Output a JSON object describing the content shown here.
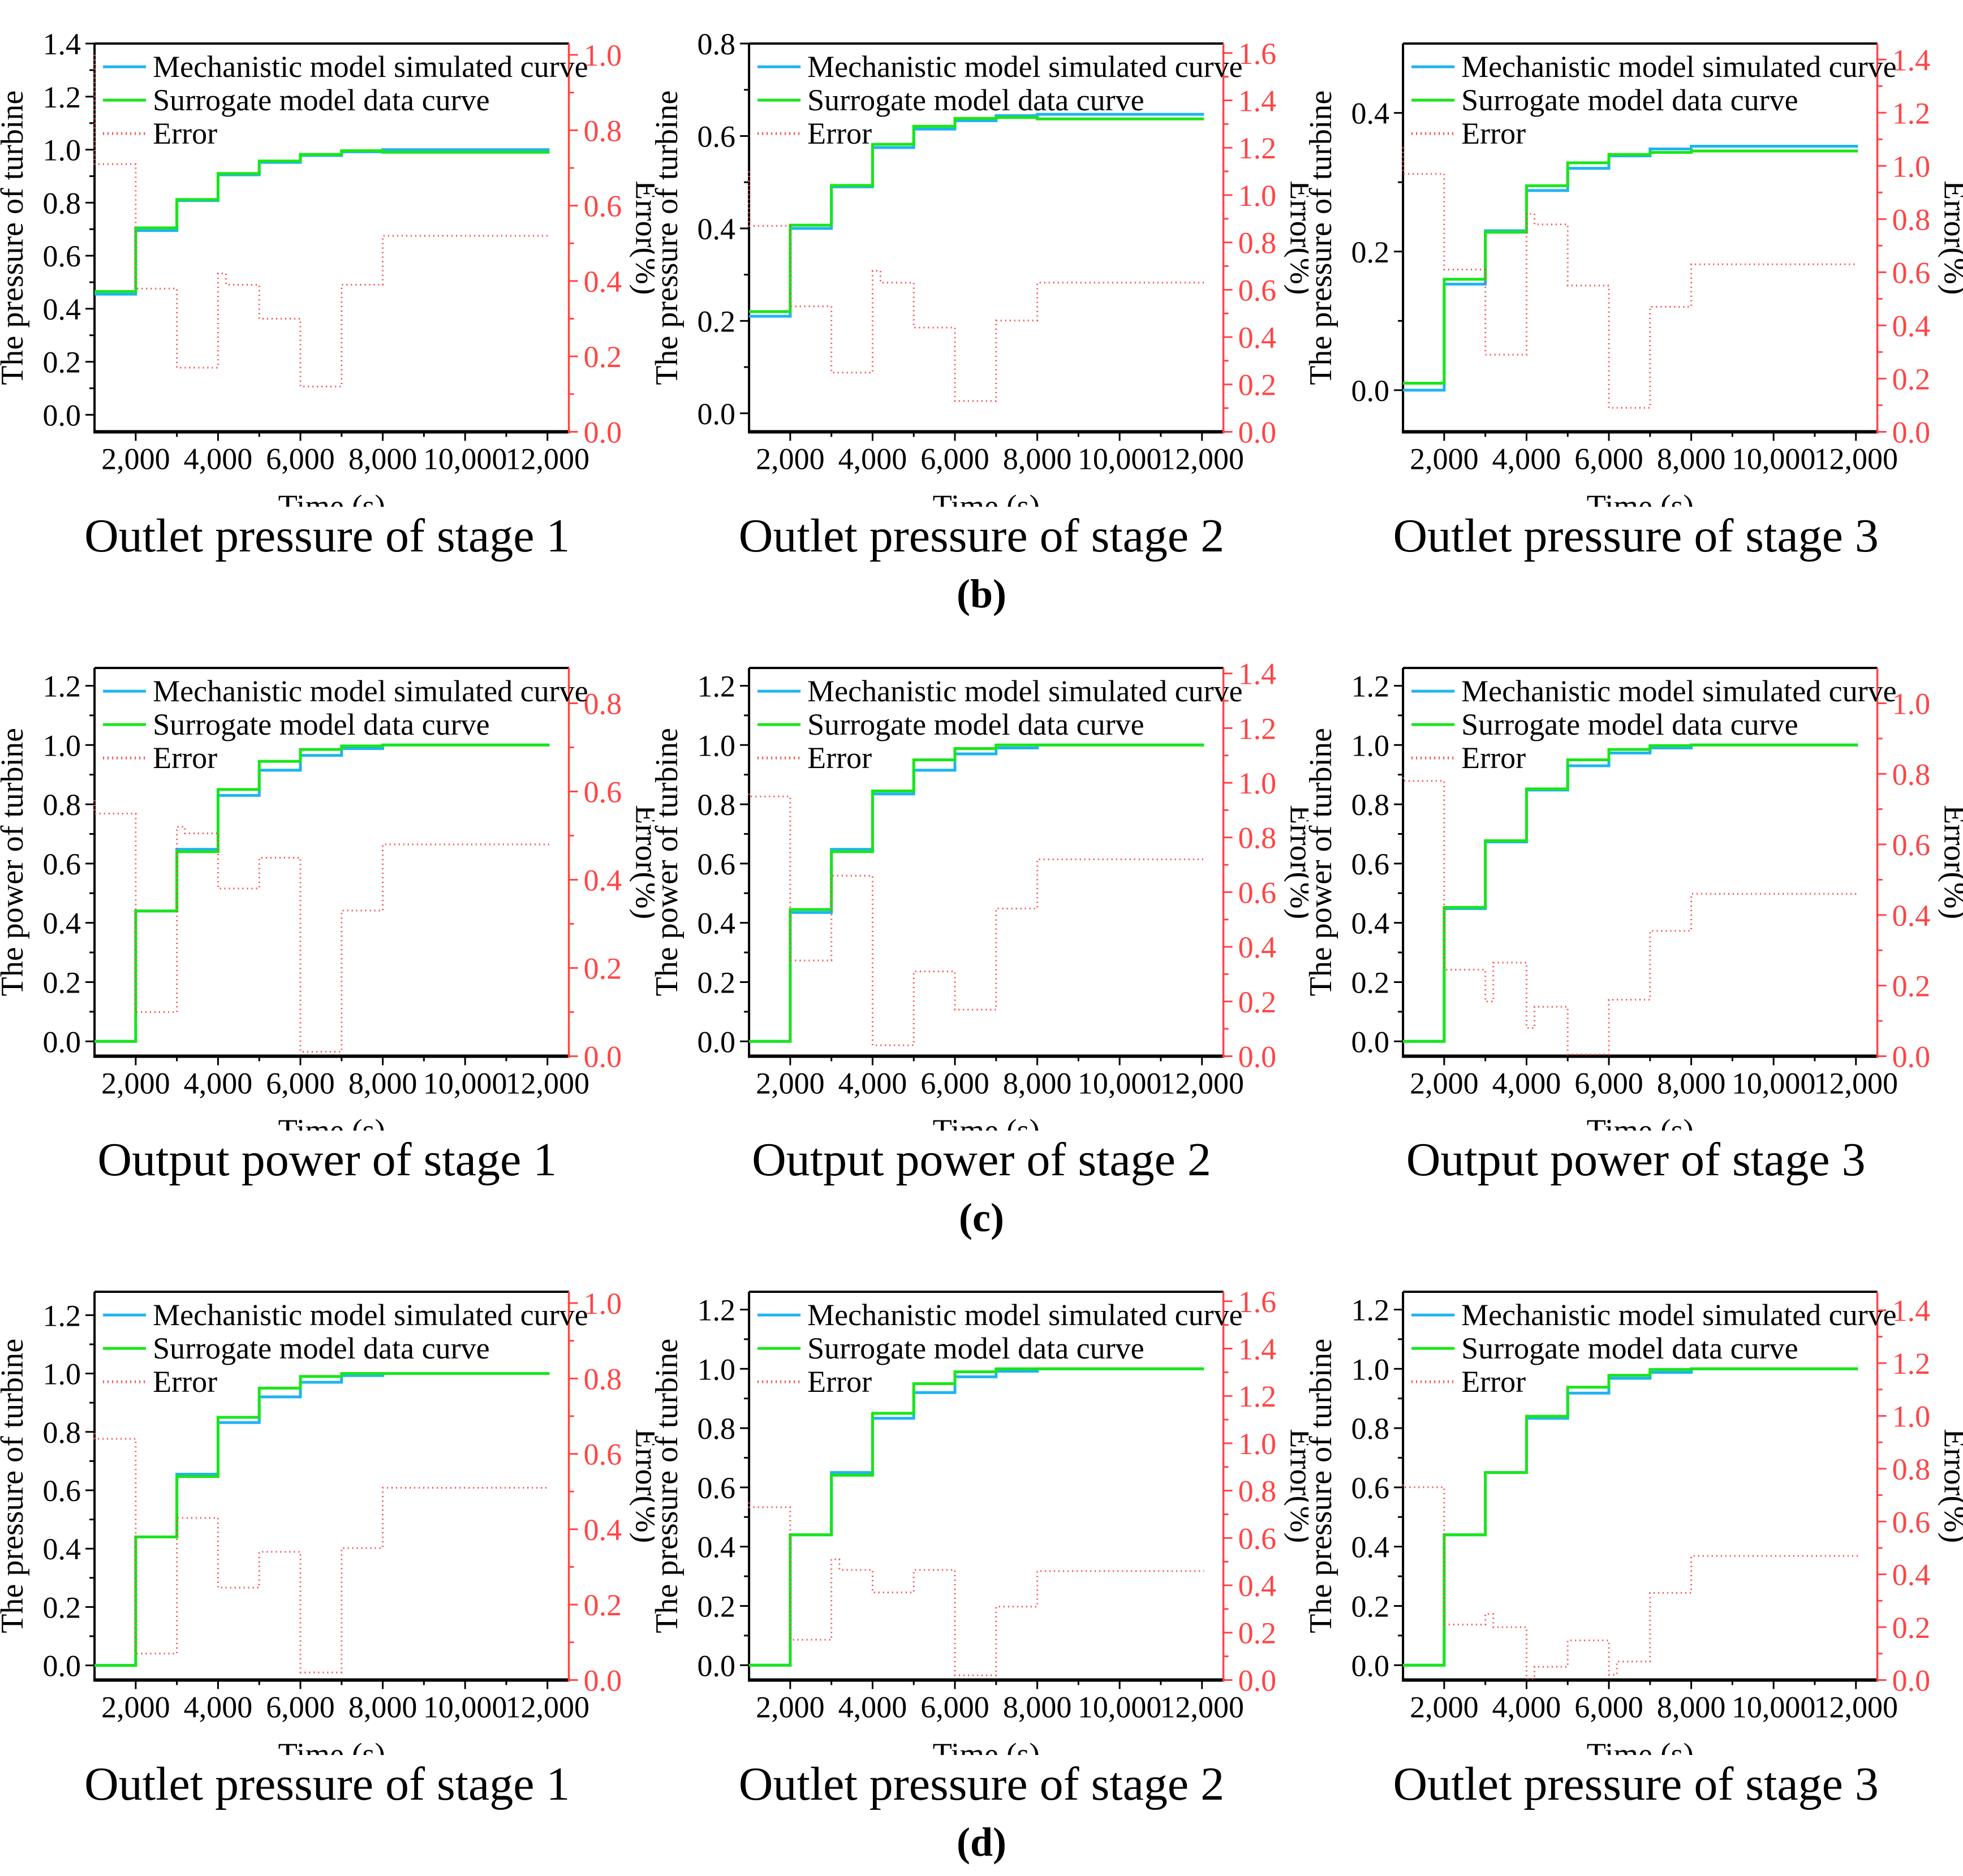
{
  "figure": {
    "row_labels": [
      "(b)",
      "(c)",
      "(d)"
    ],
    "legend": [
      "Mechanistic model simulated curve",
      "Surrogate model data curve",
      "Error"
    ],
    "colors": {
      "mechanistic": "#1fb4f0",
      "surrogate": "#19e619",
      "error": "#ff4545",
      "axis": "#000000"
    },
    "x": {
      "label": "Time (s)",
      "min": 1000,
      "max": 12520,
      "ticks": [
        2000,
        4000,
        6000,
        8000,
        10000,
        12000
      ],
      "ticklabels": [
        "2,000",
        "4,000",
        "6,000",
        "8,000",
        "10,000",
        "12,000"
      ],
      "minor_ticks": [
        3000,
        5000,
        7000,
        9000,
        11000
      ]
    },
    "step_boundaries": [
      1000,
      2000,
      3000,
      4000,
      5000,
      6000,
      7000,
      8000
    ],
    "x_end": 12050
  },
  "chart_data": [
    {
      "type": "line-step",
      "caption": "Outlet pressure of stage 1",
      "left_axis": {
        "label": "The pressure of turbine",
        "min": -0.064,
        "max": 1.4,
        "ticks": [
          0.0,
          0.2,
          0.4,
          0.6,
          0.8,
          1.0,
          1.2,
          1.4
        ],
        "labels": [
          "0.0",
          "0.2",
          "0.4",
          "0.6",
          "0.8",
          "1.0",
          "1.2",
          "1.4"
        ]
      },
      "right_axis": {
        "label": "Error(%)",
        "min": 0,
        "max": 1.03,
        "ticks": [
          0.0,
          0.2,
          0.4,
          0.6,
          0.8,
          1.0
        ],
        "labels": [
          "0.0",
          "0.2",
          "0.4",
          "0.6",
          "0.8",
          "1.0"
        ]
      },
      "series": {
        "mechanistic": [
          0.455,
          0.695,
          0.808,
          0.905,
          0.952,
          0.978,
          0.992,
          1.0
        ],
        "surrogate": [
          0.465,
          0.705,
          0.812,
          0.91,
          0.957,
          0.982,
          0.996,
          0.99
        ],
        "error": {
          "start": 1.0,
          "steps": [
            0.71,
            0.38,
            0.17,
            [
              0.42,
              0.39
            ],
            0.3,
            0.12,
            0.39,
            0.52
          ]
        }
      }
    },
    {
      "type": "line-step",
      "caption": "Outlet pressure of stage 2",
      "left_axis": {
        "label": "The pressure of turbine",
        "min": -0.04,
        "max": 0.8,
        "ticks": [
          0.0,
          0.2,
          0.4,
          0.6,
          0.8
        ],
        "labels": [
          "0.0",
          "0.2",
          "0.4",
          "0.6",
          "0.8"
        ]
      },
      "right_axis": {
        "label": "Error(%)",
        "min": 0,
        "max": 1.64,
        "ticks": [
          0.0,
          0.2,
          0.4,
          0.6,
          0.8,
          1.0,
          1.2,
          1.4,
          1.6
        ],
        "labels": [
          "0.0",
          "0.2",
          "0.4",
          "0.6",
          "0.8",
          "1.0",
          "1.2",
          "1.4",
          "1.6"
        ]
      },
      "series": {
        "mechanistic": [
          0.21,
          0.4,
          0.49,
          0.575,
          0.615,
          0.633,
          0.644,
          0.647
        ],
        "surrogate": [
          0.22,
          0.407,
          0.493,
          0.582,
          0.621,
          0.638,
          0.64,
          0.637
        ],
        "error": {
          "start": 1.1,
          "steps": [
            0.87,
            0.53,
            0.25,
            [
              0.68,
              0.63
            ],
            0.44,
            0.13,
            0.47,
            0.63
          ]
        }
      }
    },
    {
      "type": "line-step",
      "caption": "Outlet pressure of stage 3",
      "left_axis": {
        "label": "The pressure of turbine",
        "min": -0.06,
        "max": 0.5,
        "ticks": [
          0.0,
          0.2,
          0.4
        ],
        "labels": [
          "0.0",
          "0.2",
          "0.4"
        ]
      },
      "right_axis": {
        "label": "Error(%)",
        "min": 0,
        "max": 1.46,
        "ticks": [
          0.0,
          0.2,
          0.4,
          0.6,
          0.8,
          1.0,
          1.2,
          1.4
        ],
        "labels": [
          "0.0",
          "0.2",
          "0.4",
          "0.6",
          "0.8",
          "1.0",
          "1.2",
          "1.4"
        ]
      },
      "series": {
        "mechanistic": [
          0.0,
          0.153,
          0.23,
          0.288,
          0.32,
          0.338,
          0.348,
          0.352
        ],
        "surrogate": [
          0.01,
          0.16,
          0.228,
          0.295,
          0.328,
          0.34,
          0.343,
          0.345
        ],
        "error": {
          "start": 1.07,
          "steps": [
            0.97,
            0.61,
            0.29,
            [
              0.82,
              0.78
            ],
            0.55,
            0.09,
            0.47,
            0.63
          ]
        }
      }
    },
    {
      "type": "line-step",
      "caption": "Output power of stage 1",
      "left_axis": {
        "label": "The power of turbine",
        "min": -0.05,
        "max": 1.26,
        "ticks": [
          0.0,
          0.2,
          0.4,
          0.6,
          0.8,
          1.0,
          1.2
        ],
        "labels": [
          "0.0",
          "0.2",
          "0.4",
          "0.6",
          "0.8",
          "1.0",
          "1.2"
        ]
      },
      "right_axis": {
        "label": "Error(%)",
        "min": 0,
        "max": 0.88,
        "ticks": [
          0.0,
          0.2,
          0.4,
          0.6,
          0.8
        ],
        "labels": [
          "0.0",
          "0.2",
          "0.4",
          "0.6",
          "0.8"
        ]
      },
      "series": {
        "mechanistic": [
          0.0,
          0.44,
          0.648,
          0.83,
          0.915,
          0.965,
          0.988,
          1.0
        ],
        "surrogate": [
          0.0,
          0.44,
          0.64,
          0.85,
          0.945,
          0.985,
          0.997,
          1.0
        ],
        "error": {
          "start": 0.58,
          "steps": [
            0.55,
            0.1,
            [
              0.52,
              0.505
            ],
            0.38,
            0.45,
            0.01,
            0.33,
            0.48
          ]
        }
      }
    },
    {
      "type": "line-step",
      "caption": "Output power of stage 2",
      "left_axis": {
        "label": "The power of turbine",
        "min": -0.05,
        "max": 1.26,
        "ticks": [
          0.0,
          0.2,
          0.4,
          0.6,
          0.8,
          1.0,
          1.2
        ],
        "labels": [
          "0.0",
          "0.2",
          "0.4",
          "0.6",
          "0.8",
          "1.0",
          "1.2"
        ]
      },
      "right_axis": {
        "label": "Error(%)",
        "min": 0,
        "max": 1.42,
        "ticks": [
          0.0,
          0.2,
          0.4,
          0.6,
          0.8,
          1.0,
          1.2,
          1.4
        ],
        "labels": [
          "0.0",
          "0.2",
          "0.4",
          "0.6",
          "0.8",
          "1.0",
          "1.2",
          "1.4"
        ]
      },
      "series": {
        "mechanistic": [
          0.0,
          0.435,
          0.648,
          0.835,
          0.915,
          0.97,
          0.99,
          1.0
        ],
        "surrogate": [
          0.0,
          0.445,
          0.64,
          0.845,
          0.95,
          0.988,
          1.0,
          1.0
        ],
        "error": {
          "start": 0.96,
          "steps": [
            0.95,
            0.35,
            0.66,
            0.04,
            0.31,
            0.17,
            0.54,
            0.72
          ]
        }
      }
    },
    {
      "type": "line-step",
      "caption": "Output power of stage 3",
      "left_axis": {
        "label": "The power of turbine",
        "min": -0.05,
        "max": 1.26,
        "ticks": [
          0.0,
          0.2,
          0.4,
          0.6,
          0.8,
          1.0,
          1.2
        ],
        "labels": [
          "0.0",
          "0.2",
          "0.4",
          "0.6",
          "0.8",
          "1.0",
          "1.2"
        ]
      },
      "right_axis": {
        "label": "Error(%)",
        "min": 0,
        "max": 1.1,
        "ticks": [
          0.0,
          0.2,
          0.4,
          0.6,
          0.8,
          1.0
        ],
        "labels": [
          "0.0",
          "0.2",
          "0.4",
          "0.6",
          "0.8",
          "1.0"
        ]
      },
      "series": {
        "mechanistic": [
          0.0,
          0.448,
          0.673,
          0.848,
          0.93,
          0.973,
          0.99,
          1.0
        ],
        "surrogate": [
          0.0,
          0.452,
          0.677,
          0.852,
          0.95,
          0.985,
          0.998,
          1.0
        ],
        "error": {
          "start": 0.79,
          "steps": [
            0.78,
            0.245,
            [
              0.155,
              0.265
            ],
            [
              0.08,
              0.14
            ],
            0.005,
            0.16,
            0.355,
            0.46
          ]
        }
      }
    },
    {
      "type": "line-step",
      "caption": "Outlet pressure of stage 1",
      "left_axis": {
        "label": "The pressure of turbine",
        "min": -0.05,
        "max": 1.28,
        "ticks": [
          0.0,
          0.2,
          0.4,
          0.6,
          0.8,
          1.0,
          1.2
        ],
        "labels": [
          "0.0",
          "0.2",
          "0.4",
          "0.6",
          "0.8",
          "1.0",
          "1.2"
        ]
      },
      "right_axis": {
        "label": "Error(%)",
        "min": 0,
        "max": 1.03,
        "ticks": [
          0.0,
          0.2,
          0.4,
          0.6,
          0.8,
          1.0
        ],
        "labels": [
          "0.0",
          "0.2",
          "0.4",
          "0.6",
          "0.8",
          "1.0"
        ]
      },
      "series": {
        "mechanistic": [
          0.0,
          0.44,
          0.655,
          0.832,
          0.92,
          0.97,
          0.993,
          1.0
        ],
        "surrogate": [
          0.0,
          0.44,
          0.647,
          0.85,
          0.95,
          0.99,
          1.0,
          1.0
        ],
        "error": {
          "start": 0.655,
          "steps": [
            0.64,
            0.07,
            0.43,
            0.245,
            0.34,
            0.02,
            0.35,
            0.51
          ]
        }
      }
    },
    {
      "type": "line-step",
      "caption": "Outlet pressure of stage 2",
      "left_axis": {
        "label": "The pressure of turbine",
        "min": -0.05,
        "max": 1.26,
        "ticks": [
          0.0,
          0.2,
          0.4,
          0.6,
          0.8,
          1.0,
          1.2
        ],
        "labels": [
          "0.0",
          "0.2",
          "0.4",
          "0.6",
          "0.8",
          "1.0",
          "1.2"
        ]
      },
      "right_axis": {
        "label": "Error(%)",
        "min": 0,
        "max": 1.64,
        "ticks": [
          0.0,
          0.2,
          0.4,
          0.6,
          0.8,
          1.0,
          1.2,
          1.4,
          1.6
        ],
        "labels": [
          "0.0",
          "0.2",
          "0.4",
          "0.6",
          "0.8",
          "1.0",
          "1.2",
          "1.4",
          "1.6"
        ]
      },
      "series": {
        "mechanistic": [
          0.0,
          0.44,
          0.65,
          0.833,
          0.92,
          0.973,
          0.992,
          1.0
        ],
        "surrogate": [
          0.0,
          0.44,
          0.641,
          0.85,
          0.95,
          0.99,
          1.0,
          1.0
        ],
        "error": {
          "start": 0.75,
          "steps": [
            0.73,
            0.17,
            [
              0.51,
              0.465
            ],
            0.37,
            0.465,
            0.02,
            0.31,
            0.46
          ]
        }
      }
    },
    {
      "type": "line-step",
      "caption": "Outlet pressure of stage 3",
      "left_axis": {
        "label": "The pressure of turbine",
        "min": -0.05,
        "max": 1.26,
        "ticks": [
          0.0,
          0.2,
          0.4,
          0.6,
          0.8,
          1.0,
          1.2
        ],
        "labels": [
          "0.0",
          "0.2",
          "0.4",
          "0.6",
          "0.8",
          "1.0",
          "1.2"
        ]
      },
      "right_axis": {
        "label": "Error(%)",
        "min": 0,
        "max": 1.47,
        "ticks": [
          0.0,
          0.2,
          0.4,
          0.6,
          0.8,
          1.0,
          1.2,
          1.4
        ],
        "labels": [
          "0.0",
          "0.2",
          "0.4",
          "0.6",
          "0.8",
          "1.0",
          "1.2",
          "1.4"
        ]
      },
      "series": {
        "mechanistic": [
          0.0,
          0.44,
          0.65,
          0.833,
          0.918,
          0.968,
          0.988,
          1.0
        ],
        "surrogate": [
          0.0,
          0.44,
          0.65,
          0.84,
          0.938,
          0.978,
          0.998,
          1.0
        ],
        "error": {
          "start": 0.74,
          "steps": [
            0.73,
            0.21,
            [
              0.25,
              0.2
            ],
            [
              0.005,
              0.05
            ],
            0.15,
            [
              0.02,
              0.07
            ],
            0.33,
            0.47
          ]
        }
      }
    }
  ]
}
